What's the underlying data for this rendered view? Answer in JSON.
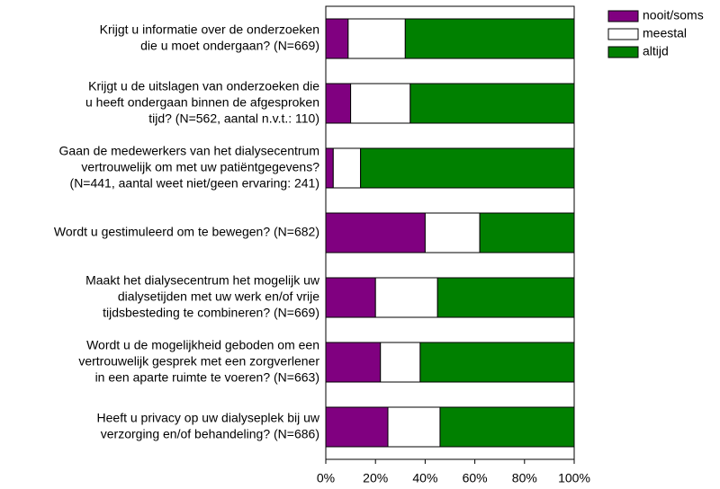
{
  "chart_data": {
    "type": "stacked-bar-horizontal",
    "categories": [
      [
        "Krijgt u informatie over de onderzoeken",
        "die u moet ondergaan? (N=669)"
      ],
      [
        "Krijgt u de uitslagen van onderzoeken die",
        "u heeft ondergaan binnen de afgesproken",
        "tijd? (N=562, aantal n.v.t.: 110)"
      ],
      [
        "Gaan de medewerkers van het dialysecentrum",
        "vertrouwelijk om met uw patiëntgegevens?",
        "(N=441, aantal weet niet/geen ervaring: 241)"
      ],
      [
        "Wordt u gestimuleerd om te bewegen? (N=682)"
      ],
      [
        "Maakt het dialysecentrum het mogelijk uw",
        "dialysetijden met uw werk en/of vrije",
        "tijdsbesteding te combineren? (N=669)"
      ],
      [
        "Wordt u de mogelijkheid geboden om een",
        "vertrouwelijk gesprek met een zorgverlener",
        "in een aparte ruimte te voeren? (N=663)"
      ],
      [
        "Heeft u privacy op uw dialyseplek bij uw",
        "verzorging en/of behandeling? (N=686)"
      ]
    ],
    "series": [
      {
        "name": "nooit/soms",
        "color": "#800080",
        "values": [
          9,
          10,
          3,
          40,
          20,
          22,
          25
        ]
      },
      {
        "name": "meestal",
        "color": "#ffffff",
        "values": [
          23,
          24,
          11,
          22,
          25,
          16,
          21
        ]
      },
      {
        "name": "altijd",
        "color": "#008000",
        "values": [
          68,
          66,
          86,
          38,
          55,
          62,
          54
        ]
      }
    ],
    "xlim": [
      0,
      100
    ],
    "xticks": [
      {
        "value": 0,
        "label": "0%"
      },
      {
        "value": 20,
        "label": "20%"
      },
      {
        "value": 40,
        "label": "40%"
      },
      {
        "value": 60,
        "label": "60%"
      },
      {
        "value": 80,
        "label": "80%"
      },
      {
        "value": 100,
        "label": "100%"
      }
    ],
    "legend": "top-right"
  }
}
